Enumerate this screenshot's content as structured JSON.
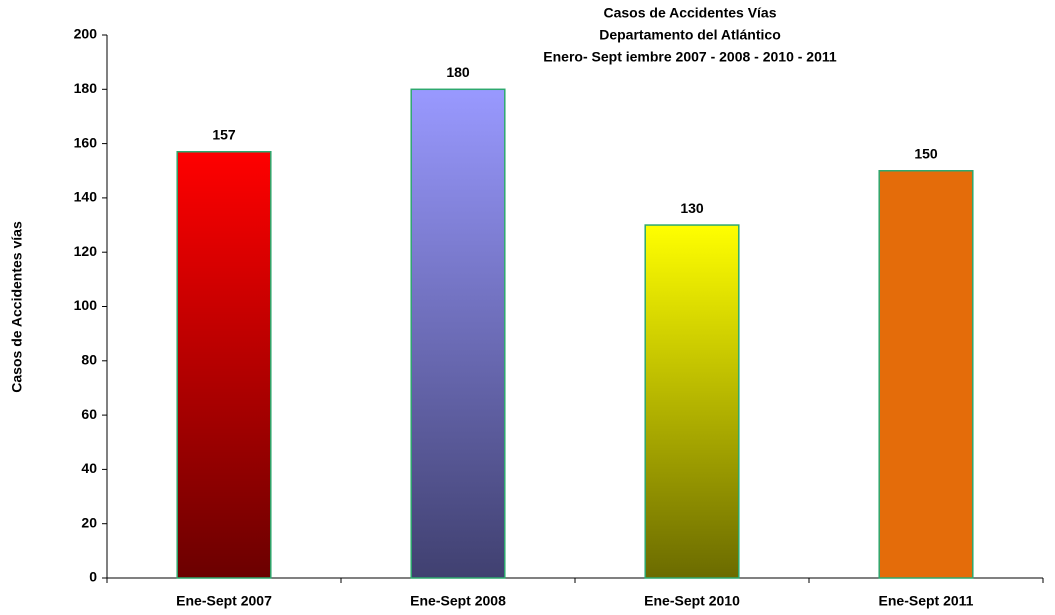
{
  "chart_data": {
    "type": "bar",
    "title": [
      "Casos de Accidentes Vías",
      "Departamento del Atlántico",
      "Enero- Sept iembre 2007 - 2008 - 2010 - 2011"
    ],
    "ylabel": "Casos de Accidentes vías",
    "categories": [
      "Ene-Sept 2007",
      "Ene-Sept 2008",
      "Ene-Sept 2010",
      "Ene-Sept 2011"
    ],
    "values": [
      157,
      180,
      130,
      150
    ],
    "colors": [
      [
        "#ff0000",
        "#6b0000"
      ],
      [
        "#9999ff",
        "#404070"
      ],
      [
        "#ffff00",
        "#6b6b00"
      ],
      [
        "#e46c0a",
        "#e46c0a"
      ]
    ],
    "edgecolor": "#2ea86e",
    "ylim": [
      0,
      200
    ],
    "yticks": [
      0,
      20,
      40,
      60,
      80,
      100,
      120,
      140,
      160,
      180,
      200
    ],
    "grid": false
  }
}
